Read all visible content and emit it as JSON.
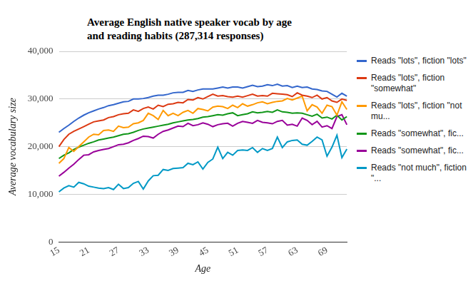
{
  "chart_data": {
    "type": "line",
    "title": "Average English native speaker vocab by age and reading habits (287,314 responses)",
    "x_label": "Age",
    "y_label": "Average vocabulary size",
    "categories": [
      15,
      null,
      null,
      null,
      null,
      null,
      21,
      null,
      null,
      null,
      null,
      null,
      27,
      null,
      null,
      null,
      null,
      null,
      33,
      null,
      null,
      null,
      null,
      null,
      39,
      null,
      null,
      null,
      null,
      null,
      45,
      null,
      null,
      null,
      null,
      null,
      51,
      null,
      null,
      null,
      null,
      null,
      57,
      null,
      null,
      null,
      null,
      null,
      63,
      null,
      null,
      null,
      null,
      null,
      69,
      null,
      null,
      null,
      null
    ],
    "ylim": [
      0,
      40000
    ],
    "yticks": [
      0,
      {
        "value": 10000,
        "label": "10,000"
      },
      {
        "value": 20000,
        "label": "20,000"
      },
      {
        "value": 30000,
        "label": "30,000"
      },
      {
        "value": 40000,
        "label": "40,000"
      }
    ],
    "grid": true,
    "legend": "right",
    "series": [
      {
        "name": "Reads \"lots\", fiction \"lots\"",
        "color": "#3366cc",
        "values": [
          23000,
          23800,
          24500,
          25300,
          26000,
          26600,
          27100,
          27500,
          27900,
          28200,
          28600,
          28800,
          29100,
          29400,
          29500,
          30000,
          30000,
          30100,
          30300,
          30600,
          30800,
          30800,
          31000,
          31300,
          31400,
          31400,
          31800,
          31600,
          31900,
          32100,
          32100,
          32100,
          32300,
          32500,
          32300,
          32500,
          32500,
          32300,
          32600,
          32900,
          32600,
          32700,
          33000,
          32800,
          33100,
          32700,
          32800,
          32400,
          32700,
          32400,
          32500,
          32100,
          32000,
          31700,
          31600,
          31000,
          30400,
          31200,
          30600
        ]
      },
      {
        "name": "Reads \"lots\", fiction \"somewhat\"",
        "color": "#dc3912",
        "values": [
          20000,
          21500,
          22600,
          23200,
          23700,
          24200,
          24700,
          25200,
          25400,
          25600,
          26100,
          26300,
          26700,
          26900,
          27000,
          27700,
          27400,
          28000,
          28300,
          27900,
          28700,
          28400,
          28900,
          29000,
          29300,
          29200,
          29900,
          29800,
          30300,
          30000,
          30500,
          31000,
          30600,
          30700,
          30500,
          30400,
          30600,
          30400,
          30700,
          31000,
          30600,
          30700,
          30600,
          31200,
          31100,
          31000,
          30900,
          30500,
          31300,
          30800,
          30600,
          30300,
          30800,
          30000,
          30300,
          29600,
          29300,
          30000,
          29700
        ]
      },
      {
        "name": "Reads \"lots\", fiction \"not mu...",
        "color": "#ff9900",
        "values": [
          16500,
          17500,
          19800,
          19000,
          20000,
          21000,
          22000,
          22600,
          22500,
          23400,
          23500,
          23200,
          24300,
          24000,
          24100,
          24800,
          25000,
          25500,
          27000,
          26500,
          25700,
          27600,
          26500,
          27000,
          26500,
          27200,
          27600,
          27000,
          28000,
          27800,
          27500,
          28300,
          28500,
          28400,
          28000,
          28700,
          28200,
          29000,
          28500,
          28800,
          29200,
          29400,
          29000,
          29300,
          29500,
          29600,
          30100,
          29800,
          30200,
          30600,
          27500,
          28800,
          28300,
          27000,
          28700,
          28400,
          26600,
          29400,
          27800
        ]
      },
      {
        "name": "Reads \"somewhat\", fic...",
        "color": "#109618",
        "values": [
          17500,
          18200,
          18700,
          19400,
          19900,
          20300,
          20700,
          21000,
          21400,
          21600,
          21800,
          22000,
          22300,
          22600,
          22700,
          23000,
          23400,
          23700,
          23900,
          24100,
          24300,
          24500,
          24700,
          25000,
          25200,
          25400,
          25600,
          25700,
          25900,
          26200,
          26300,
          26500,
          26700,
          26600,
          26900,
          27100,
          26500,
          26700,
          26900,
          27300,
          27100,
          27200,
          27400,
          27200,
          27700,
          27300,
          27200,
          27000,
          27100,
          27000,
          26700,
          26400,
          26800,
          26000,
          26200,
          25800,
          26600,
          25600,
          26300
        ]
      },
      {
        "name": "Reads \"somewhat\", fic...",
        "color": "#990099",
        "values": [
          13800,
          14600,
          15500,
          16300,
          17300,
          18200,
          18300,
          18900,
          19200,
          19400,
          19600,
          20000,
          20400,
          20500,
          20800,
          21300,
          21700,
          22200,
          22100,
          21800,
          22600,
          23200,
          23500,
          23900,
          24300,
          24200,
          24900,
          24400,
          24600,
          25000,
          24700,
          24200,
          24600,
          24800,
          24900,
          24300,
          24900,
          25300,
          25100,
          24900,
          25500,
          25100,
          25000,
          24800,
          25300,
          25500,
          24500,
          24700,
          24300,
          26000,
          25500,
          24600,
          25300,
          24100,
          24400,
          23800,
          26300,
          26700,
          24600
        ]
      },
      {
        "name": "Reads \"not much\", fiction \"...",
        "color": "#0099c6",
        "values": [
          10500,
          11300,
          11800,
          11500,
          12500,
          12200,
          11700,
          11500,
          11300,
          11200,
          11400,
          11000,
          12100,
          11200,
          11400,
          12300,
          12700,
          11100,
          12800,
          13900,
          14000,
          15200,
          15000,
          15400,
          15500,
          15600,
          16500,
          16200,
          16800,
          15300,
          16700,
          17400,
          19900,
          17500,
          18800,
          18200,
          19200,
          19300,
          19200,
          19800,
          18800,
          19600,
          19200,
          19600,
          22000,
          19800,
          21000,
          21300,
          21400,
          20500,
          20300,
          21100,
          22000,
          21400,
          18000,
          19900,
          22400,
          17700,
          19500
        ]
      }
    ]
  }
}
